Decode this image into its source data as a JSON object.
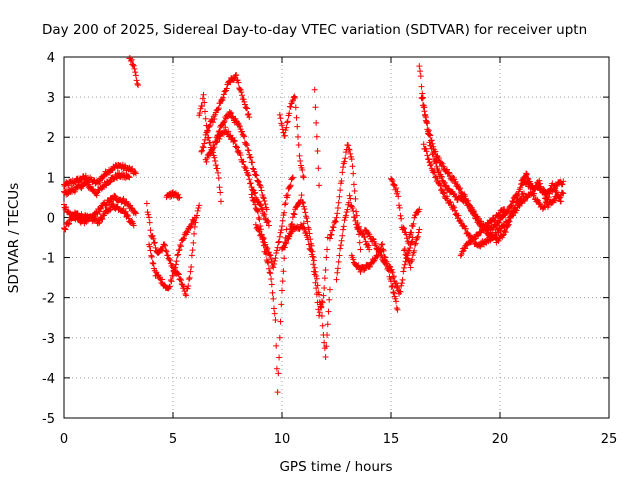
{
  "chart_data": {
    "type": "scatter",
    "title": "Day 200 of 2025, Sidereal Day-to-day VTEC variation (SDTVAR) for receiver uptn",
    "xlabel": "GPS time / hours",
    "ylabel": "SDTVAR / TECUs",
    "xlim": [
      0,
      25
    ],
    "ylim": [
      -5,
      4
    ],
    "xticks": [
      "0",
      "5",
      "10",
      "15",
      "20",
      "25"
    ],
    "yticks": [
      "4",
      "3",
      "2",
      "1",
      "0",
      "-1",
      "-2",
      "-3",
      "-4",
      "-5"
    ],
    "grid": true,
    "marker": "+",
    "color": "#ff0000",
    "series": [
      {
        "name": "SDTVAR",
        "segments": [
          [
            [
              0.0,
              0.8
            ],
            [
              0.5,
              0.9
            ],
            [
              1.0,
              1.0
            ],
            [
              1.5,
              0.85
            ],
            [
              2.0,
              1.15
            ],
            [
              2.5,
              1.3
            ],
            [
              3.0,
              1.2
            ],
            [
              3.3,
              1.1
            ]
          ],
          [
            [
              0.0,
              0.6
            ],
            [
              0.5,
              0.7
            ],
            [
              1.0,
              0.85
            ],
            [
              1.5,
              0.6
            ],
            [
              2.0,
              0.9
            ],
            [
              2.5,
              1.05
            ],
            [
              3.0,
              1.0
            ]
          ],
          [
            [
              0.0,
              0.3
            ],
            [
              0.4,
              0.0
            ],
            [
              0.9,
              -0.1
            ],
            [
              1.3,
              0.0
            ],
            [
              1.8,
              0.3
            ],
            [
              2.3,
              0.5
            ],
            [
              2.8,
              0.4
            ],
            [
              3.3,
              0.1
            ]
          ],
          [
            [
              0.0,
              -0.3
            ],
            [
              0.5,
              0.1
            ],
            [
              1.0,
              0.0
            ],
            [
              1.6,
              -0.1
            ],
            [
              2.2,
              0.3
            ],
            [
              2.7,
              0.2
            ],
            [
              3.2,
              -0.2
            ]
          ],
          [
            [
              3.0,
              4.0
            ],
            [
              3.2,
              3.8
            ],
            [
              3.4,
              3.3
            ]
          ],
          [
            [
              3.8,
              0.3
            ],
            [
              4.0,
              -0.4
            ],
            [
              4.3,
              -0.9
            ],
            [
              4.6,
              -0.7
            ],
            [
              5.0,
              -1.3
            ],
            [
              5.3,
              -1.5
            ],
            [
              5.6,
              -1.9
            ],
            [
              5.8,
              -1.4
            ],
            [
              6.0,
              -0.2
            ],
            [
              6.2,
              0.3
            ]
          ],
          [
            [
              3.9,
              -0.7
            ],
            [
              4.2,
              -1.4
            ],
            [
              4.5,
              -1.6
            ],
            [
              4.8,
              -1.8
            ],
            [
              5.1,
              -1.2
            ],
            [
              5.4,
              -0.6
            ],
            [
              5.7,
              -0.3
            ],
            [
              6.0,
              0.0
            ]
          ],
          [
            [
              4.7,
              0.5
            ],
            [
              5.0,
              0.6
            ],
            [
              5.3,
              0.5
            ]
          ],
          [
            [
              6.2,
              2.5
            ],
            [
              6.4,
              3.0
            ],
            [
              6.6,
              2.0
            ],
            [
              6.9,
              1.5
            ],
            [
              7.1,
              1.0
            ],
            [
              7.2,
              0.4
            ]
          ],
          [
            [
              6.3,
              1.6
            ],
            [
              6.6,
              2.2
            ],
            [
              6.9,
              2.5
            ],
            [
              7.3,
              3.0
            ],
            [
              7.6,
              3.4
            ],
            [
              7.9,
              3.5
            ],
            [
              8.2,
              3.0
            ],
            [
              8.5,
              2.5
            ]
          ],
          [
            [
              6.5,
              1.4
            ],
            [
              6.9,
              1.8
            ],
            [
              7.3,
              2.4
            ],
            [
              7.6,
              2.6
            ],
            [
              8.0,
              2.3
            ],
            [
              8.4,
              1.8
            ],
            [
              8.7,
              1.2
            ],
            [
              9.0,
              0.8
            ],
            [
              9.3,
              0.2
            ]
          ],
          [
            [
              7.0,
              1.9
            ],
            [
              7.4,
              2.2
            ],
            [
              7.8,
              1.9
            ],
            [
              8.2,
              1.4
            ],
            [
              8.6,
              0.8
            ],
            [
              9.0,
              0.3
            ],
            [
              9.4,
              -0.2
            ]
          ],
          [
            [
              8.6,
              0.6
            ],
            [
              8.9,
              0.1
            ],
            [
              9.2,
              -0.8
            ],
            [
              9.5,
              -1.5
            ],
            [
              9.7,
              -2.6
            ],
            [
              9.8,
              -4.3
            ],
            [
              10.0,
              -1.8
            ],
            [
              10.2,
              -0.3
            ]
          ],
          [
            [
              8.8,
              -0.2
            ],
            [
              9.2,
              -0.6
            ],
            [
              9.6,
              -1.2
            ],
            [
              9.9,
              -0.5
            ],
            [
              10.2,
              0.5
            ],
            [
              10.5,
              1.0
            ]
          ],
          [
            [
              9.9,
              2.5
            ],
            [
              10.1,
              2.0
            ],
            [
              10.4,
              2.8
            ],
            [
              10.6,
              3.0
            ],
            [
              10.8,
              1.5
            ],
            [
              11.0,
              1.0
            ]
          ],
          [
            [
              10.3,
              -0.5
            ],
            [
              10.6,
              0.2
            ],
            [
              10.9,
              0.5
            ],
            [
              11.2,
              -0.2
            ],
            [
              11.5,
              -1.2
            ],
            [
              11.8,
              -2.3
            ],
            [
              12.0,
              -3.5
            ],
            [
              12.2,
              -1.8
            ]
          ],
          [
            [
              10.0,
              -0.8
            ],
            [
              10.5,
              -0.3
            ],
            [
              11.0,
              -0.2
            ],
            [
              11.4,
              -1.0
            ],
            [
              11.7,
              -2.4
            ],
            [
              11.9,
              -2.0
            ],
            [
              12.1,
              -0.5
            ]
          ],
          [
            [
              11.5,
              3.2
            ],
            [
              11.6,
              2.0
            ],
            [
              11.7,
              0.8
            ]
          ],
          [
            [
              12.2,
              -0.5
            ],
            [
              12.5,
              0.0
            ],
            [
              12.8,
              1.2
            ],
            [
              13.0,
              1.8
            ],
            [
              13.2,
              1.5
            ],
            [
              13.4,
              0.2
            ],
            [
              13.6,
              -0.8
            ]
          ],
          [
            [
              12.5,
              -1.5
            ],
            [
              12.8,
              -0.3
            ],
            [
              13.1,
              0.5
            ],
            [
              13.4,
              -0.2
            ],
            [
              13.7,
              -0.4
            ],
            [
              14.0,
              -0.8
            ]
          ],
          [
            [
              13.2,
              -1.0
            ],
            [
              13.6,
              -1.3
            ],
            [
              14.0,
              -1.2
            ],
            [
              14.3,
              -1.0
            ],
            [
              14.6,
              -0.7
            ],
            [
              15.0,
              -1.6
            ],
            [
              15.3,
              -2.3
            ]
          ],
          [
            [
              13.8,
              -0.3
            ],
            [
              14.2,
              -0.6
            ],
            [
              14.6,
              -1.0
            ],
            [
              15.0,
              -1.3
            ],
            [
              15.4,
              -1.9
            ],
            [
              15.7,
              -1.0
            ],
            [
              16.0,
              -0.5
            ]
          ],
          [
            [
              15.0,
              1.0
            ],
            [
              15.3,
              0.6
            ],
            [
              15.5,
              -0.2
            ],
            [
              15.8,
              -0.6
            ],
            [
              16.1,
              0.0
            ],
            [
              16.3,
              0.2
            ]
          ],
          [
            [
              15.6,
              -0.8
            ],
            [
              15.9,
              -1.2
            ],
            [
              16.1,
              -0.7
            ],
            [
              16.3,
              -0.3
            ]
          ],
          [
            [
              16.3,
              3.8
            ],
            [
              16.5,
              2.8
            ],
            [
              16.8,
              1.8
            ],
            [
              17.2,
              1.1
            ],
            [
              17.6,
              0.7
            ],
            [
              18.0,
              0.5
            ],
            [
              18.4,
              0.4
            ],
            [
              18.8,
              0.1
            ],
            [
              19.2,
              -0.2
            ],
            [
              19.6,
              -0.3
            ],
            [
              20.0,
              -0.1
            ],
            [
              20.4,
              0.2
            ],
            [
              20.8,
              0.6
            ],
            [
              21.2,
              1.1
            ]
          ],
          [
            [
              16.4,
              3.0
            ],
            [
              16.7,
              2.2
            ],
            [
              17.1,
              1.5
            ],
            [
              17.5,
              1.2
            ],
            [
              17.9,
              0.9
            ],
            [
              18.3,
              0.6
            ],
            [
              18.7,
              0.2
            ],
            [
              19.1,
              -0.2
            ],
            [
              19.5,
              -0.4
            ],
            [
              19.9,
              -0.6
            ],
            [
              20.3,
              -0.3
            ],
            [
              20.7,
              0.3
            ],
            [
              21.1,
              0.6
            ]
          ],
          [
            [
              16.5,
              1.8
            ],
            [
              16.9,
              1.2
            ],
            [
              17.4,
              0.6
            ],
            [
              17.8,
              0.3
            ],
            [
              18.2,
              -0.1
            ],
            [
              18.6,
              -0.5
            ],
            [
              19.0,
              -0.7
            ],
            [
              19.4,
              -0.6
            ],
            [
              19.8,
              -0.4
            ],
            [
              20.2,
              -0.2
            ],
            [
              20.6,
              0.1
            ],
            [
              21.0,
              0.4
            ]
          ],
          [
            [
              18.2,
              -0.9
            ],
            [
              18.6,
              -0.6
            ],
            [
              19.0,
              -0.4
            ],
            [
              19.4,
              -0.2
            ],
            [
              19.8,
              0.0
            ],
            [
              20.2,
              0.2
            ]
          ],
          [
            [
              21.0,
              0.9
            ],
            [
              21.4,
              0.8
            ],
            [
              21.8,
              0.7
            ],
            [
              22.2,
              0.6
            ],
            [
              22.6,
              0.8
            ],
            [
              22.9,
              0.9
            ]
          ],
          [
            [
              21.0,
              0.4
            ],
            [
              21.4,
              0.6
            ],
            [
              21.8,
              0.9
            ],
            [
              22.2,
              0.3
            ],
            [
              22.6,
              0.5
            ],
            [
              22.9,
              0.6
            ]
          ],
          [
            [
              21.2,
              1.1
            ],
            [
              21.6,
              0.5
            ],
            [
              22.0,
              0.2
            ],
            [
              22.4,
              0.8
            ],
            [
              22.8,
              0.4
            ]
          ]
        ]
      }
    ]
  }
}
